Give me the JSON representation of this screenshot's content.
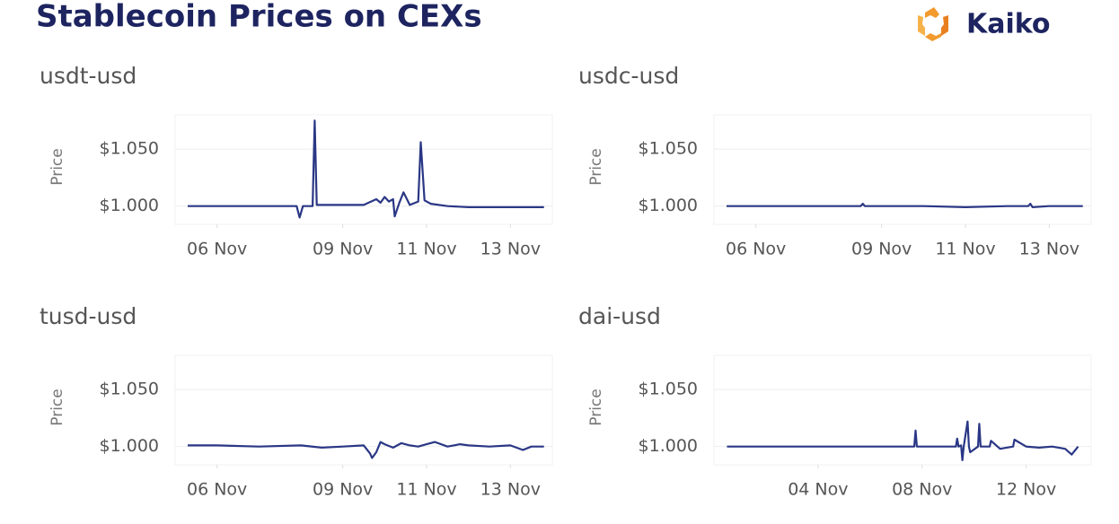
{
  "title": "Stablecoin Prices on CEXs",
  "logo": "Kaiko",
  "chart_data": [
    {
      "type": "line",
      "title": "usdt-usd",
      "y_label": "Price",
      "grid": true,
      "xlim": [
        5,
        14
      ],
      "xticks": [
        {
          "value": 6,
          "label": "06 Nov"
        },
        {
          "value": 9,
          "label": "09 Nov"
        },
        {
          "value": 11,
          "label": "11 Nov"
        },
        {
          "value": 13,
          "label": "13 Nov"
        }
      ],
      "ylim": [
        0.984,
        1.08
      ],
      "yticks": [
        {
          "value": 1,
          "label": "$1.000"
        },
        {
          "value": 1.05,
          "label": "$1.050"
        }
      ],
      "x": [
        5.3,
        6,
        7,
        7.9,
        7.97,
        8.05,
        8.28,
        8.33,
        8.38,
        9,
        9.5,
        9.8,
        9.9,
        10,
        10.1,
        10.2,
        10.24,
        10.35,
        10.45,
        10.6,
        10.8,
        10.86,
        10.95,
        11.1,
        11.5,
        12,
        12.5,
        13,
        13.5,
        13.8
      ],
      "series": [
        {
          "color": "#2a3785",
          "values": [
            1.0,
            1.0,
            1.0,
            1.0,
            0.99,
            1.0,
            1.0,
            1.075,
            1.001,
            1.001,
            1.001,
            1.006,
            1.003,
            1.008,
            1.004,
            1.006,
            0.991,
            1.003,
            1.012,
            1.001,
            1.004,
            1.056,
            1.005,
            1.002,
            1.0,
            0.999,
            0.999,
            0.999,
            0.999,
            0.999
          ]
        }
      ]
    },
    {
      "type": "line",
      "title": "usdc-usd",
      "y_label": "Price",
      "grid": true,
      "xlim": [
        5,
        14
      ],
      "xticks": [
        {
          "value": 6,
          "label": "06 Nov"
        },
        {
          "value": 9,
          "label": "09 Nov"
        },
        {
          "value": 11,
          "label": "11 Nov"
        },
        {
          "value": 13,
          "label": "13 Nov"
        }
      ],
      "ylim": [
        0.984,
        1.08
      ],
      "yticks": [
        {
          "value": 1,
          "label": "$1.000"
        },
        {
          "value": 1.05,
          "label": "$1.050"
        }
      ],
      "x": [
        5.3,
        6,
        7,
        8,
        8.5,
        8.55,
        8.6,
        9,
        10,
        11,
        12,
        12.5,
        12.55,
        12.6,
        13,
        13.8
      ],
      "series": [
        {
          "color": "#2a3785",
          "values": [
            1.0,
            1.0,
            1.0,
            1.0,
            1.0,
            1.002,
            1.0,
            1.0,
            1.0,
            0.999,
            1.0,
            1.0,
            1.002,
            0.999,
            1.0,
            1.0
          ]
        }
      ]
    },
    {
      "type": "line",
      "title": "tusd-usd",
      "y_label": "Price",
      "grid": true,
      "xlim": [
        5,
        14
      ],
      "xticks": [
        {
          "value": 6,
          "label": "06 Nov"
        },
        {
          "value": 9,
          "label": "09 Nov"
        },
        {
          "value": 11,
          "label": "11 Nov"
        },
        {
          "value": 13,
          "label": "13 Nov"
        }
      ],
      "ylim": [
        0.984,
        1.08
      ],
      "yticks": [
        {
          "value": 1,
          "label": "$1.000"
        },
        {
          "value": 1.05,
          "label": "$1.050"
        }
      ],
      "x": [
        5.3,
        6,
        7,
        8,
        8.5,
        9,
        9.5,
        9.65,
        9.7,
        9.8,
        9.9,
        10,
        10.2,
        10.4,
        10.6,
        10.8,
        11,
        11.2,
        11.5,
        11.8,
        12,
        12.5,
        13,
        13.3,
        13.5,
        13.8
      ],
      "series": [
        {
          "color": "#2a3785",
          "values": [
            1.001,
            1.001,
            1.0,
            1.001,
            0.999,
            1.0,
            1.001,
            0.994,
            0.99,
            0.995,
            1.004,
            1.002,
            0.999,
            1.003,
            1.001,
            1.0,
            1.002,
            1.004,
            1.0,
            1.002,
            1.001,
            1.0,
            1.001,
            0.997,
            1.0,
            1.0
          ]
        }
      ]
    },
    {
      "type": "line",
      "title": "dai-usd",
      "y_label": "Price",
      "grid": true,
      "xlim": [
        0,
        14.5
      ],
      "xticks": [
        {
          "value": 4,
          "label": "04 Nov"
        },
        {
          "value": 8,
          "label": "08 Nov"
        },
        {
          "value": 12,
          "label": "12 Nov"
        }
      ],
      "ylim": [
        0.984,
        1.08
      ],
      "yticks": [
        {
          "value": 1,
          "label": "$1.000"
        },
        {
          "value": 1.05,
          "label": "$1.050"
        }
      ],
      "x": [
        0.5,
        3,
        6,
        7.7,
        7.75,
        7.8,
        9.3,
        9.35,
        9.4,
        9.5,
        9.55,
        9.6,
        9.75,
        9.8,
        9.85,
        10.15,
        10.2,
        10.25,
        10.6,
        10.65,
        11,
        11.5,
        11.55,
        12,
        12.5,
        13,
        13.5,
        13.75,
        14
      ],
      "series": [
        {
          "color": "#2a3785",
          "values": [
            1.0,
            1.0,
            1.0,
            1.0,
            1.014,
            1.0,
            1.0,
            1.007,
            1.0,
            1.001,
            0.988,
            1.0,
            1.022,
            1.0,
            0.995,
            1.0,
            1.02,
            1.0,
            1.0,
            1.005,
            0.998,
            1.0,
            1.006,
            1.0,
            0.999,
            1.0,
            0.998,
            0.993,
            1.0
          ]
        }
      ]
    }
  ]
}
